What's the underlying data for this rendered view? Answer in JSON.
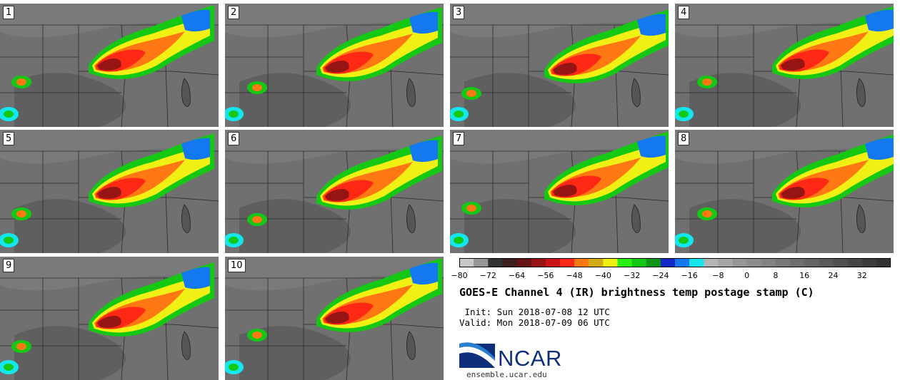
{
  "panels": [
    {
      "label": "1"
    },
    {
      "label": "2"
    },
    {
      "label": "3"
    },
    {
      "label": "4"
    },
    {
      "label": "5"
    },
    {
      "label": "6"
    },
    {
      "label": "7"
    },
    {
      "label": "8"
    },
    {
      "label": "9"
    },
    {
      "label": "10"
    }
  ],
  "colorbar": {
    "ticks": [
      "−80",
      "−72",
      "−64",
      "−56",
      "−48",
      "−40",
      "−32",
      "−24",
      "−16",
      "−8",
      "0",
      "8",
      "16",
      "24",
      "32"
    ],
    "tick_values": [
      -80,
      -72,
      -64,
      -56,
      -48,
      -40,
      -32,
      -24,
      -16,
      -8,
      0,
      8,
      16,
      24,
      32
    ],
    "vmin": -80,
    "vmax": 40,
    "step": 4,
    "colors": [
      "#c8c8c8",
      "#969696",
      "#323232",
      "#3c1e1e",
      "#641414",
      "#961414",
      "#c81414",
      "#ff2814",
      "#ff7814",
      "#d2aa14",
      "#f0f014",
      "#28f014",
      "#14c814",
      "#0a9614",
      "#1428c8",
      "#1478f0",
      "#14e6f0",
      "#b4b4b4",
      "#a5a5a5",
      "#969696",
      "#8c8c8c",
      "#828282",
      "#787878",
      "#6e6e6e",
      "#646464",
      "#5a5a5a",
      "#505050",
      "#464646",
      "#3c3c3c",
      "#323232"
    ]
  },
  "title": "GOES-E Channel 4 (IR) brightness temp postage stamp (C)",
  "init_line": " Init: Sun 2018-07-08 12 UTC",
  "valid_line": "Valid: Mon 2018-07-09 06 UTC",
  "logo": {
    "text": "NCAR",
    "color": "#0e2f7a",
    "accent": "#2a7fd4"
  },
  "site": "ensemble.ucar.edu"
}
